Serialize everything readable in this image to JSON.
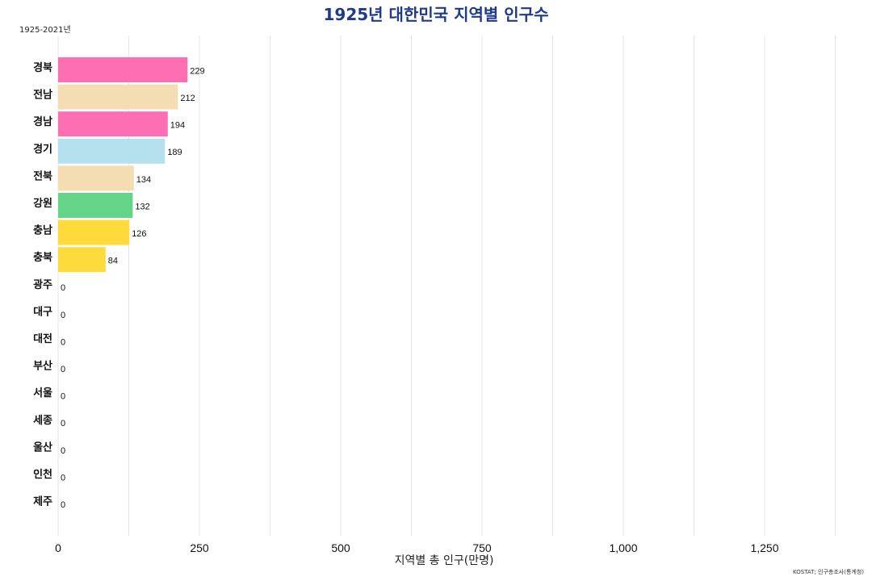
{
  "chart_data": {
    "type": "bar",
    "orientation": "horizontal",
    "title": "1925년 대한민국 지역별 인구수",
    "subtitle": "1925-2021년",
    "xlabel": "지역별 총 인구(만명)",
    "ylabel": "",
    "source": "KOSTAT; 인구총조사(통계청)",
    "xlim": [
      0,
      1400
    ],
    "xticks": [
      0,
      250,
      500,
      750,
      1000,
      1250
    ],
    "xtick_labels": [
      "0",
      "250",
      "500",
      "750",
      "1,000",
      "1,250"
    ],
    "grid": "vertical",
    "categories": [
      "경북",
      "전남",
      "경남",
      "경기",
      "전북",
      "강원",
      "충남",
      "충북",
      "광주",
      "대구",
      "대전",
      "부산",
      "서울",
      "세종",
      "울산",
      "인천",
      "제주"
    ],
    "values": [
      229,
      212,
      194,
      189,
      134,
      132,
      126,
      84,
      0,
      0,
      0,
      0,
      0,
      0,
      0,
      0,
      0
    ],
    "colors": [
      "#fd6eb3",
      "#f5ddb3",
      "#fd6eb3",
      "#b5e0ee",
      "#f5ddb3",
      "#63d488",
      "#fedb3a",
      "#fedb3a",
      "#cccccc",
      "#cccccc",
      "#cccccc",
      "#cccccc",
      "#cccccc",
      "#cccccc",
      "#cccccc",
      "#cccccc",
      "#cccccc"
    ]
  }
}
